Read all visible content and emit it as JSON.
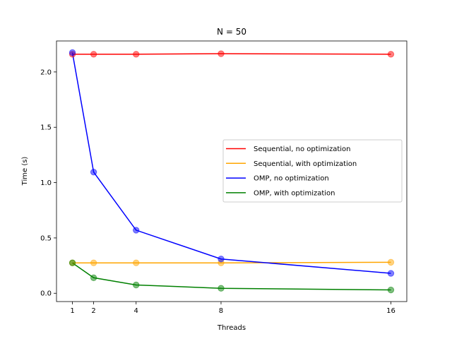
{
  "chart_data": {
    "type": "line",
    "title": "N = 50",
    "xlabel": "Threads",
    "ylabel": "Time (s)",
    "x": [
      1,
      2,
      4,
      8,
      16
    ],
    "x_ticks": [
      1,
      2,
      4,
      8,
      16
    ],
    "y_ticks": [
      0.0,
      0.5,
      1.0,
      1.5,
      2.0
    ],
    "xlim": [
      0.25,
      16.75
    ],
    "ylim": [
      -0.075,
      2.28
    ],
    "grid": false,
    "legend_position": "center-right",
    "series": [
      {
        "name": "Sequential, no optimization",
        "color": "#ff0000",
        "values": [
          2.16,
          2.16,
          2.16,
          2.165,
          2.16
        ]
      },
      {
        "name": "Sequential, with optimization",
        "color": "#ffa500",
        "values": [
          0.275,
          0.275,
          0.275,
          0.275,
          0.28
        ]
      },
      {
        "name": "OMP, no optimization",
        "color": "#0000ff",
        "values": [
          2.175,
          1.095,
          0.57,
          0.31,
          0.18
        ]
      },
      {
        "name": "OMP, with optimization",
        "color": "#008000",
        "values": [
          0.275,
          0.14,
          0.075,
          0.045,
          0.03
        ]
      }
    ]
  }
}
